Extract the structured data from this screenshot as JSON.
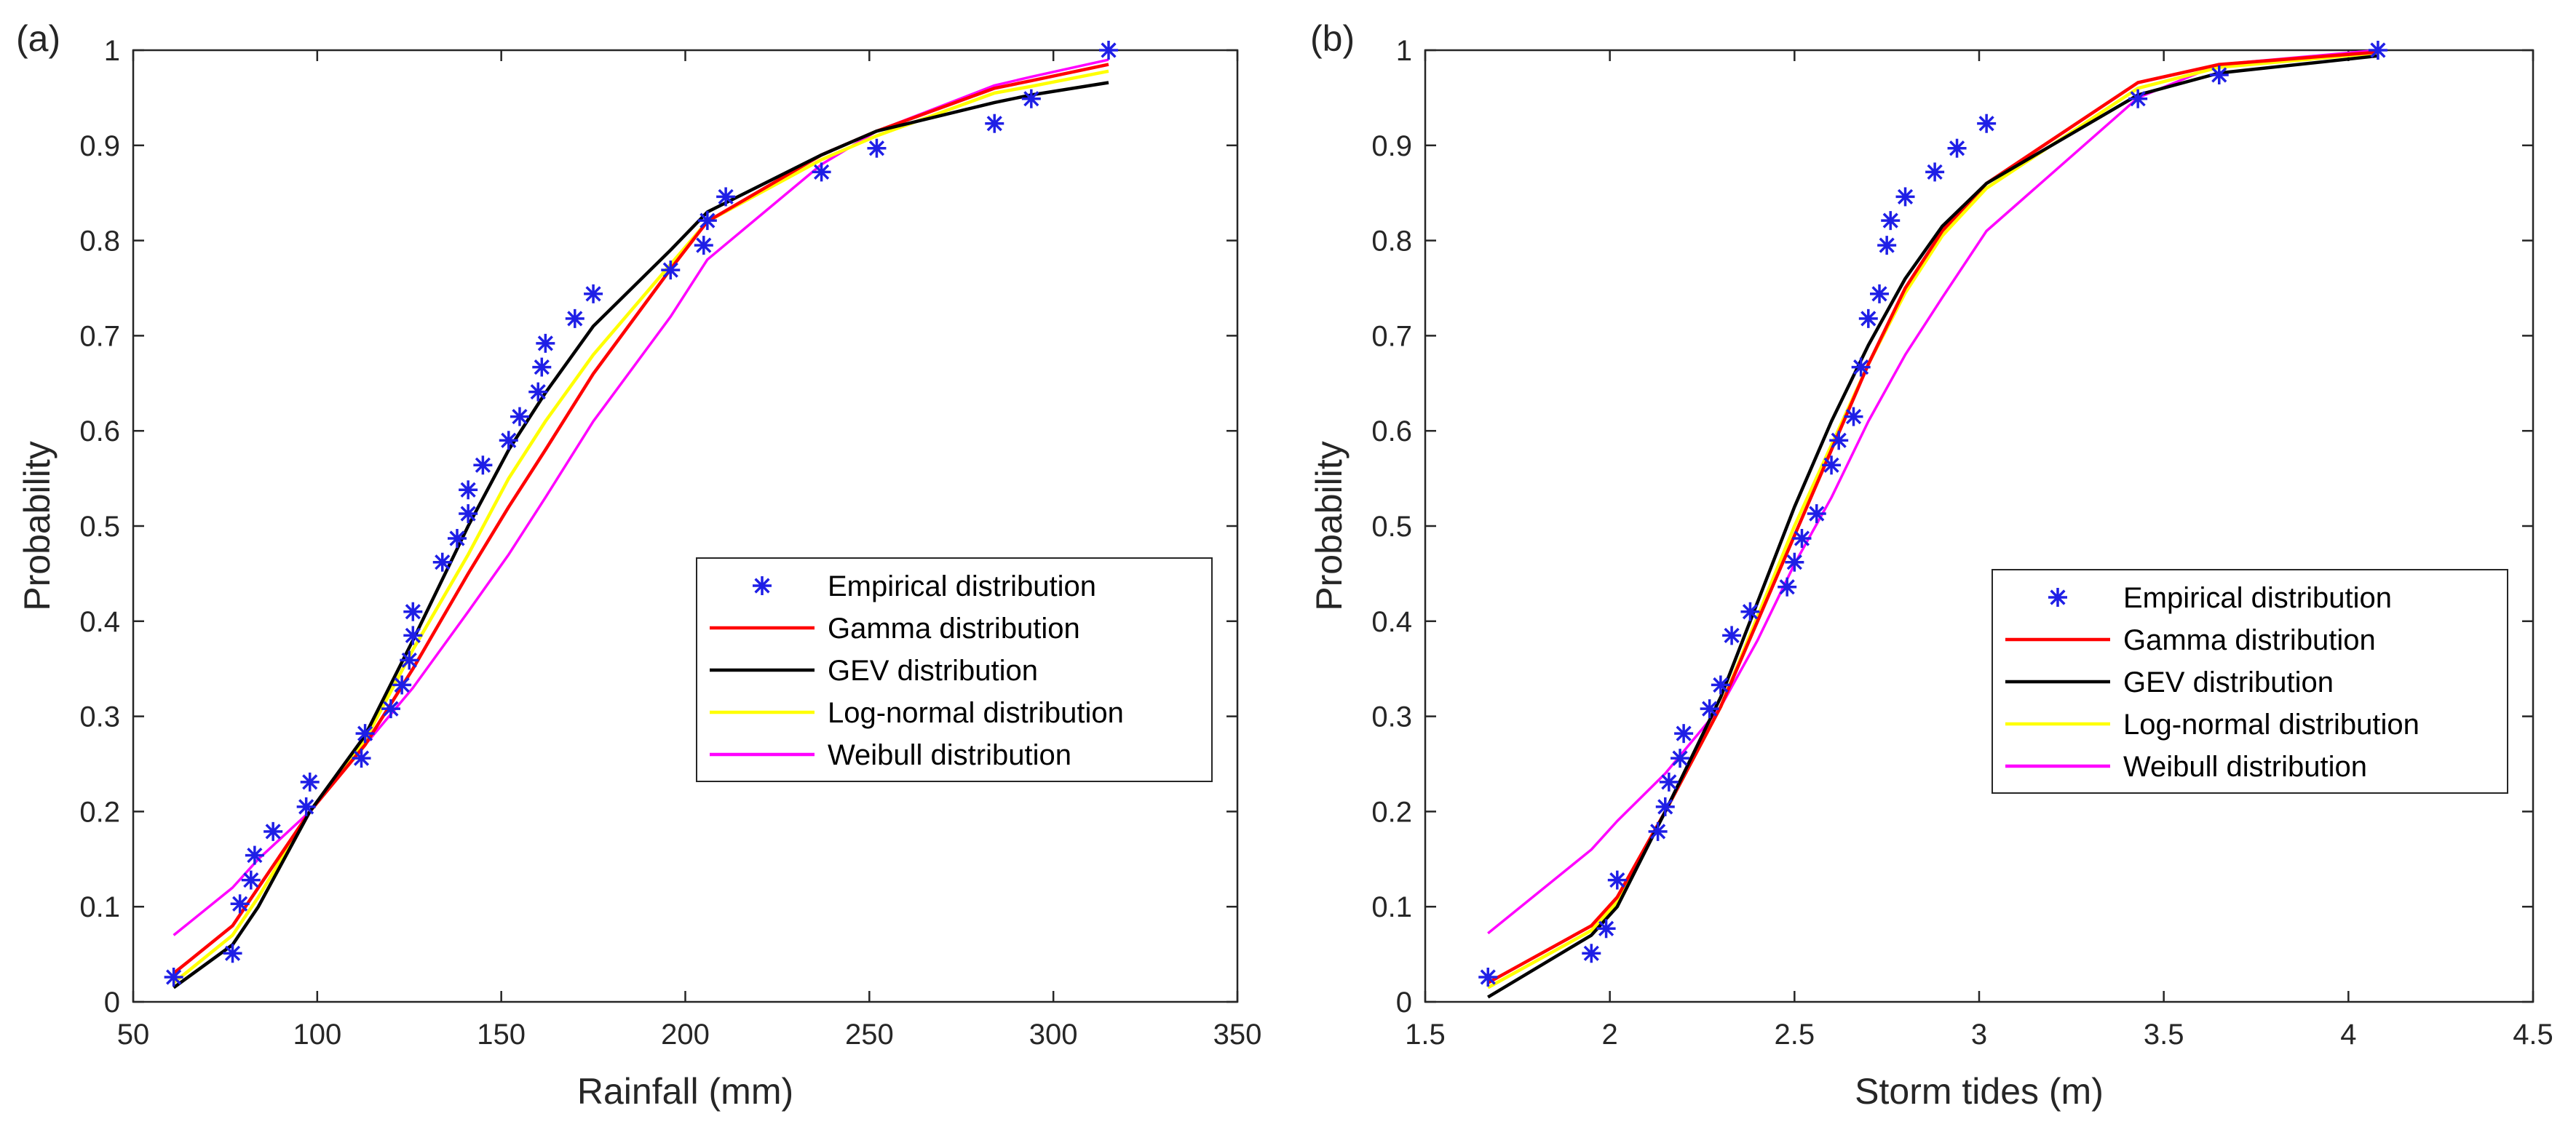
{
  "colors": {
    "empirical": "#1f1fe6",
    "gamma": "#ff0000",
    "gev": "#000000",
    "lognormal": "#ffff00",
    "weibull": "#ff00ff",
    "axis": "#262626"
  },
  "chart_data": [
    {
      "type": "line",
      "tag": "(a)",
      "xlabel": "Rainfall (mm)",
      "ylabel": "Probability",
      "xlim": [
        50,
        350
      ],
      "ylim": [
        0,
        1
      ],
      "xticks": [
        50,
        100,
        150,
        200,
        250,
        300,
        350
      ],
      "xtick_labels": [
        "50",
        "100",
        "150",
        "200",
        "250",
        "300",
        "350"
      ],
      "yticks": [
        0,
        0.1,
        0.2,
        0.3,
        0.4,
        0.5,
        0.6,
        0.7,
        0.8,
        0.9,
        1
      ],
      "ytick_labels": [
        "0",
        "0.1",
        "0.2",
        "0.3",
        "0.4",
        "0.5",
        "0.6",
        "0.7",
        "0.8",
        "0.9",
        "1"
      ],
      "legend_position": "center-right",
      "legend": [
        "Empirical distribution",
        "Gamma distribution",
        "GEV distribution",
        "Log-normal distribution",
        "Weibull distribution"
      ],
      "empirical": {
        "x": [
          61,
          77,
          79,
          82,
          83,
          88,
          97,
          98,
          112,
          113,
          120,
          123,
          125,
          126,
          126,
          134,
          138,
          141,
          141,
          145,
          152,
          155,
          160,
          161,
          162,
          170,
          175,
          196,
          205,
          206,
          211,
          237,
          252,
          284,
          294,
          315
        ],
        "y": [
          0.026,
          0.051,
          0.103,
          0.128,
          0.154,
          0.179,
          0.205,
          0.231,
          0.256,
          0.282,
          0.308,
          0.333,
          0.359,
          0.385,
          0.41,
          0.462,
          0.487,
          0.513,
          0.538,
          0.564,
          0.59,
          0.615,
          0.641,
          0.667,
          0.692,
          0.718,
          0.744,
          0.769,
          0.795,
          0.821,
          0.846,
          0.872,
          0.897,
          0.923,
          0.949,
          1.0
        ]
      },
      "series": [
        {
          "name": "Gamma distribution",
          "key": "gamma",
          "x": [
            61,
            77,
            84,
            98,
            113,
            126,
            141,
            152,
            162,
            175,
            196,
            206,
            237,
            252,
            284,
            294,
            315
          ],
          "y": [
            0.03,
            0.08,
            0.12,
            0.2,
            0.27,
            0.35,
            0.45,
            0.52,
            0.58,
            0.66,
            0.77,
            0.82,
            0.89,
            0.915,
            0.96,
            0.968,
            0.985
          ]
        },
        {
          "name": "GEV distribution",
          "key": "gev",
          "x": [
            61,
            77,
            84,
            98,
            113,
            126,
            141,
            152,
            162,
            175,
            196,
            206,
            237,
            252,
            284,
            294,
            315
          ],
          "y": [
            0.015,
            0.06,
            0.1,
            0.2,
            0.28,
            0.38,
            0.5,
            0.58,
            0.64,
            0.71,
            0.79,
            0.83,
            0.89,
            0.915,
            0.945,
            0.953,
            0.966
          ]
        },
        {
          "name": "Log-normal distribution",
          "key": "lognormal",
          "x": [
            61,
            77,
            84,
            98,
            113,
            126,
            141,
            152,
            162,
            175,
            196,
            206,
            237,
            252,
            284,
            294,
            315
          ],
          "y": [
            0.02,
            0.07,
            0.11,
            0.2,
            0.275,
            0.37,
            0.47,
            0.55,
            0.61,
            0.68,
            0.775,
            0.82,
            0.885,
            0.91,
            0.955,
            0.962,
            0.978
          ]
        },
        {
          "name": "Weibull distribution",
          "key": "weibull",
          "x": [
            61,
            77,
            84,
            98,
            113,
            126,
            141,
            152,
            162,
            175,
            196,
            206,
            237,
            252,
            284,
            294,
            315
          ],
          "y": [
            0.07,
            0.12,
            0.15,
            0.2,
            0.27,
            0.33,
            0.41,
            0.47,
            0.53,
            0.61,
            0.72,
            0.78,
            0.88,
            0.915,
            0.963,
            0.972,
            0.99
          ]
        }
      ]
    },
    {
      "type": "line",
      "tag": "(b)",
      "xlabel": "Storm tides (m)",
      "ylabel": "Probability",
      "xlim": [
        1.5,
        4.5
      ],
      "ylim": [
        0,
        1
      ],
      "xticks": [
        1.5,
        2,
        2.5,
        3,
        3.5,
        4,
        4.5
      ],
      "xtick_labels": [
        "1.5",
        "2",
        "2.5",
        "3",
        "3.5",
        "4",
        "4.5"
      ],
      "yticks": [
        0,
        0.1,
        0.2,
        0.3,
        0.4,
        0.5,
        0.6,
        0.7,
        0.8,
        0.9,
        1
      ],
      "ytick_labels": [
        "0",
        "0.1",
        "0.2",
        "0.3",
        "0.4",
        "0.5",
        "0.6",
        "0.7",
        "0.8",
        "0.9",
        "1"
      ],
      "legend_position": "center-right",
      "legend": [
        "Empirical distribution",
        "Gamma distribution",
        "GEV distribution",
        "Log-normal distribution",
        "Weibull distribution"
      ],
      "empirical": {
        "x": [
          1.67,
          1.95,
          1.99,
          2.02,
          2.13,
          2.15,
          2.16,
          2.19,
          2.2,
          2.27,
          2.3,
          2.33,
          2.38,
          2.48,
          2.5,
          2.52,
          2.56,
          2.6,
          2.62,
          2.66,
          2.68,
          2.7,
          2.73,
          2.75,
          2.76,
          2.8,
          2.88,
          2.94,
          3.02,
          3.43,
          3.65,
          4.08
        ],
        "y": [
          0.026,
          0.051,
          0.077,
          0.128,
          0.179,
          0.205,
          0.231,
          0.256,
          0.282,
          0.308,
          0.333,
          0.385,
          0.41,
          0.436,
          0.462,
          0.487,
          0.513,
          0.564,
          0.59,
          0.615,
          0.667,
          0.718,
          0.744,
          0.795,
          0.821,
          0.846,
          0.872,
          0.897,
          0.923,
          0.949,
          0.974,
          1.0
        ]
      },
      "series": [
        {
          "name": "Gamma distribution",
          "key": "gamma",
          "x": [
            1.67,
            1.95,
            2.02,
            2.15,
            2.3,
            2.4,
            2.5,
            2.6,
            2.7,
            2.8,
            2.9,
            3.02,
            3.43,
            3.65,
            4.08
          ],
          "y": [
            0.02,
            0.08,
            0.11,
            0.2,
            0.31,
            0.4,
            0.49,
            0.58,
            0.67,
            0.75,
            0.81,
            0.86,
            0.966,
            0.985,
            0.998
          ]
        },
        {
          "name": "GEV distribution",
          "key": "gev",
          "x": [
            1.67,
            1.95,
            2.02,
            2.15,
            2.3,
            2.4,
            2.5,
            2.6,
            2.7,
            2.8,
            2.9,
            3.02,
            3.43,
            3.65,
            4.08
          ],
          "y": [
            0.005,
            0.07,
            0.1,
            0.2,
            0.32,
            0.42,
            0.52,
            0.61,
            0.69,
            0.76,
            0.815,
            0.86,
            0.953,
            0.976,
            0.994
          ]
        },
        {
          "name": "Log-normal distribution",
          "key": "lognormal",
          "x": [
            1.67,
            1.95,
            2.02,
            2.15,
            2.3,
            2.4,
            2.5,
            2.6,
            2.7,
            2.8,
            2.9,
            3.02,
            3.43,
            3.65,
            4.08
          ],
          "y": [
            0.015,
            0.075,
            0.105,
            0.2,
            0.31,
            0.405,
            0.5,
            0.585,
            0.67,
            0.745,
            0.805,
            0.855,
            0.96,
            0.982,
            0.997
          ]
        },
        {
          "name": "Weibull distribution",
          "key": "weibull",
          "x": [
            1.67,
            1.95,
            2.02,
            2.15,
            2.3,
            2.4,
            2.5,
            2.6,
            2.7,
            2.8,
            2.9,
            3.02,
            3.43,
            3.65,
            4.08
          ],
          "y": [
            0.072,
            0.16,
            0.19,
            0.24,
            0.31,
            0.38,
            0.46,
            0.53,
            0.61,
            0.68,
            0.74,
            0.81,
            0.95,
            0.985,
            1.0
          ]
        }
      ]
    }
  ]
}
